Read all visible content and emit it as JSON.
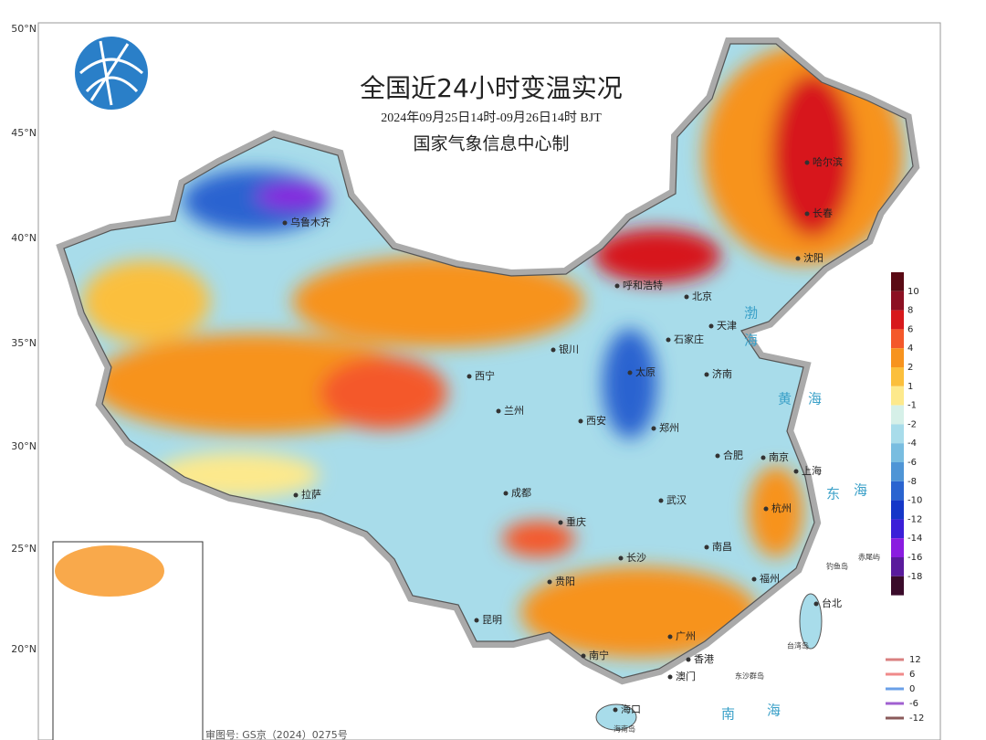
{
  "header": {
    "title": "全国近24小时变温实况",
    "subtitle": "2024年09月25日14时-09月26日14时 BJT",
    "producer": "国家气象信息中心制"
  },
  "lat_labels": [
    "50°N",
    "45°N",
    "40°N",
    "35°N",
    "30°N",
    "25°N",
    "20°N"
  ],
  "legend": {
    "colors": [
      "#5a0a14",
      "#8c1023",
      "#d7191c",
      "#f4582a",
      "#f7931e",
      "#fbbf3c",
      "#fde98c",
      "#d6f0e8",
      "#a8dcea",
      "#79bde0",
      "#4f95d6",
      "#2a64d0",
      "#1537c8",
      "#3b1fd8",
      "#8a1ce0",
      "#5a1a9c",
      "#3a0b2a"
    ],
    "ticks": [
      10,
      8,
      6,
      4,
      2,
      1,
      -1,
      -2,
      -4,
      -6,
      -8,
      -10,
      -12,
      -14,
      -16,
      -18
    ]
  },
  "contour_legend": {
    "levels": [
      12,
      6,
      0,
      -6,
      -12
    ],
    "colors": [
      "#d98080",
      "#f08a8a",
      "#6aa0e8",
      "#a060d0",
      "#8a5a5a"
    ]
  },
  "cities": [
    "乌鲁木齐",
    "哈尔滨",
    "长春",
    "沈阳",
    "呼和浩特",
    "北京",
    "天津",
    "石家庄",
    "银川",
    "太原",
    "济南",
    "西宁",
    "兰州",
    "西安",
    "郑州",
    "合肥",
    "南京",
    "上海",
    "拉萨",
    "成都",
    "重庆",
    "武汉",
    "杭州",
    "长沙",
    "南昌",
    "贵阳",
    "福州",
    "台北",
    "昆明",
    "广州",
    "南宁",
    "香港",
    "澳门",
    "海口"
  ],
  "seas": [
    "渤",
    "海",
    "黄",
    "海",
    "东",
    "海",
    "南",
    "海"
  ],
  "islands": [
    "钓鱼岛",
    "赤尾屿",
    "台湾岛",
    "东沙群岛",
    "海南岛"
  ],
  "approval": "审图号: GS京（2024）0275号"
}
